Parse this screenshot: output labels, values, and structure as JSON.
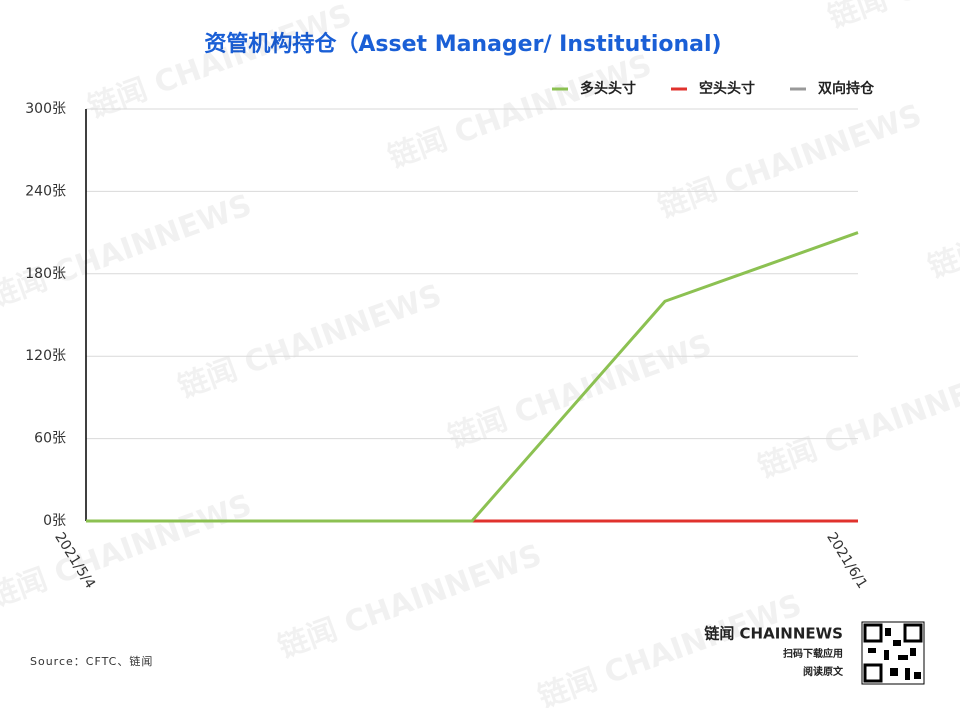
{
  "chart_data": {
    "type": "line",
    "title": "资管机构持仓（Asset Manager/ Institutional)",
    "categories": [
      "2021/5/4",
      null,
      null,
      null,
      "2021/6/1"
    ],
    "series": [
      {
        "name": "双向持仓",
        "color": "#999999",
        "values": [
          0,
          0,
          0,
          0,
          0
        ]
      },
      {
        "name": "空头头寸",
        "color": "#e0322d",
        "values": [
          0,
          0,
          0,
          0,
          0
        ]
      },
      {
        "name": "多头头寸",
        "color": "#8cc152",
        "values": [
          0,
          0,
          0,
          160,
          210
        ]
      }
    ],
    "legend_order": [
      2,
      1,
      0
    ],
    "ylim": [
      0,
      300
    ],
    "yticks": [
      {
        "value": 0,
        "label": "0张"
      },
      {
        "value": 60,
        "label": "60张"
      },
      {
        "value": 120,
        "label": "120张"
      },
      {
        "value": 180,
        "label": "180张"
      },
      {
        "value": 240,
        "label": "240张"
      },
      {
        "value": 300,
        "label": "300张"
      }
    ],
    "grid": true,
    "legend": "top-right"
  },
  "source": "Source：CFTC、链闻",
  "brand": {
    "name": "链闻 CHAINNEWS",
    "line1": "扫码下载应用",
    "line2": "阅读原文"
  },
  "watermark": "链闻 CHAINNEWS"
}
